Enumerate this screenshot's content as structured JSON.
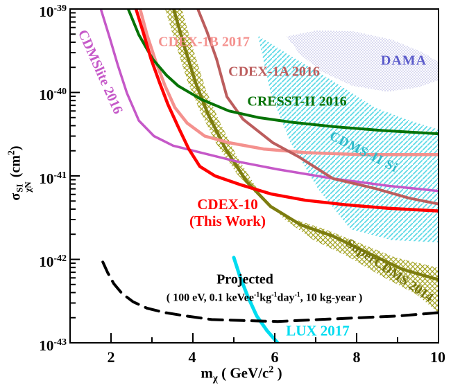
{
  "chart_data": {
    "type": "line",
    "title": "",
    "description": "WIMP spin-independent cross-section exclusion limits vs WIMP mass",
    "x_axis": {
      "scale": "linear",
      "range": [
        1,
        10
      ],
      "major_ticks": [
        2,
        4,
        6,
        8,
        10
      ],
      "minor_ticks": [
        3,
        5,
        7,
        9
      ],
      "tick_labels": [
        "2",
        "4",
        "6",
        "8",
        "10"
      ],
      "label_parts": {
        "p1": "m",
        "sub": "χ",
        "p2": " ( GeV/c",
        "sup": "2",
        "p3": " )"
      }
    },
    "y_axis": {
      "scale": "log",
      "exp_range": [
        -43,
        -39
      ],
      "tick_labels": [
        {
          "base": "10",
          "exp": "-39"
        },
        {
          "base": "10",
          "exp": "-40"
        },
        {
          "base": "10",
          "exp": "-41"
        },
        {
          "base": "10",
          "exp": "-42"
        },
        {
          "base": "10",
          "exp": "-43"
        }
      ],
      "label_parts": {
        "sigma": "σ",
        "sup": "SI",
        "sub": "χN",
        "p2": " (cm",
        "sup2": "2",
        "p3": ")"
      }
    },
    "annotations": {
      "cdmslite": "CDMSlite 2016",
      "cdex1b": "CDEX-1B 2017",
      "cdex1a": "CDEX-1A 2016",
      "cresst": "CRESST-II 2016",
      "dama": "DAMA",
      "cdms2si": "CDMS-II Si",
      "cdex10_line1": "CDEX-10",
      "cdex10_line2": "(This Work)",
      "supercdms": "SuperCDMS 2014",
      "projected": "Projected",
      "note": {
        "p1": "( 100 eV, 0.1 keVee",
        "s1": "-1",
        "p2": "kg",
        "s2": "-1",
        "p3": "day",
        "s3": "-1",
        "p4": ", 10 kg-year )"
      },
      "lux": "LUX 2017"
    },
    "series": [
      {
        "id": "dama",
        "label": "DAMA",
        "type": "region",
        "fill_style": "dots",
        "color": "#a9a9de",
        "text_color": "#5c5ccb",
        "points": [
          [
            6.29,
            4.7e-40
          ],
          [
            7.0,
            5.5e-40
          ],
          [
            7.93,
            5.4e-40
          ],
          [
            8.86,
            4.3e-40
          ],
          [
            9.63,
            3e-40
          ],
          [
            10,
            2.3e-40
          ],
          [
            10,
            1.4e-40
          ],
          [
            9.49,
            1.15e-40
          ],
          [
            8.75,
            1.02e-40
          ],
          [
            7.9,
            1.2e-40
          ],
          [
            7.12,
            1.8e-40
          ],
          [
            6.61,
            2.9e-40
          ]
        ]
      },
      {
        "id": "cdms2si",
        "label": "CDMS-II Si",
        "type": "region",
        "fill_style": "hatch",
        "color": "#5cd9e6",
        "text_color": "#2fb9c9",
        "points": [
          [
            5.59,
            4.8e-40
          ],
          [
            6.41,
            2.7e-40
          ],
          [
            7.39,
            1.4e-40
          ],
          [
            8.44,
            6.6e-41
          ],
          [
            9.29,
            4.6e-41
          ],
          [
            10,
            3.6e-41
          ],
          [
            10,
            1.6e-42
          ],
          [
            8.86,
            1.7e-42
          ],
          [
            7.85,
            2.3e-42
          ],
          [
            7.05,
            7.1e-42
          ],
          [
            6.37,
            2.6e-41
          ],
          [
            5.9,
            9.8e-41
          ]
        ]
      },
      {
        "id": "supercdms",
        "label": "SuperCDMS 2014",
        "type": "band",
        "color": "#7d7d10",
        "hatch_color": "#a3a322",
        "width": 4.5,
        "center": [
          [
            3.53,
            1e-39
          ],
          [
            3.78,
            3.7e-40
          ],
          [
            4.07,
            1.3e-40
          ],
          [
            4.37,
            5.5e-41
          ],
          [
            4.8,
            2.1e-41
          ],
          [
            5.31,
            8.6e-42
          ],
          [
            5.9,
            4.3e-42
          ],
          [
            6.63,
            2.6e-42
          ],
          [
            7.42,
            1.9e-42
          ],
          [
            8.27,
            1.2e-42
          ],
          [
            9.12,
            7.6e-43
          ],
          [
            10,
            5.7e-43
          ]
        ],
        "upper": [
          [
            3.32,
            1e-39
          ],
          [
            3.56,
            4.1e-40
          ],
          [
            3.86,
            1.4e-40
          ],
          [
            4.17,
            6e-41
          ],
          [
            4.58,
            2.4e-41
          ],
          [
            5.08,
            1.05e-41
          ],
          [
            5.68,
            5.2e-42
          ],
          [
            6.41,
            3.1e-42
          ],
          [
            7.22,
            2.3e-42
          ],
          [
            8.1,
            1.55e-42
          ],
          [
            8.95,
            1.05e-42
          ],
          [
            10,
            7.9e-43
          ]
        ],
        "lower": [
          [
            3.73,
            1e-39
          ],
          [
            4.0,
            3.4e-40
          ],
          [
            4.31,
            1.1e-40
          ],
          [
            4.64,
            4.6e-41
          ],
          [
            5.08,
            1.7e-41
          ],
          [
            5.63,
            6.3e-42
          ],
          [
            6.24,
            3e-42
          ],
          [
            6.95,
            1.7e-42
          ],
          [
            7.76,
            1.1e-42
          ],
          [
            8.61,
            6.3e-43
          ],
          [
            9.46,
            3.8e-43
          ],
          [
            10,
            2.3e-43
          ]
        ]
      },
      {
        "id": "cdmslite",
        "label": "CDMSlite 2016",
        "type": "line",
        "color": "#c558c8",
        "width": 3.5,
        "points": [
          [
            1.75,
            1e-39
          ],
          [
            1.97,
            4.5e-40
          ],
          [
            2.17,
            2.1e-40
          ],
          [
            2.39,
            9.8e-41
          ],
          [
            2.68,
            4.6e-41
          ],
          [
            3.05,
            3e-41
          ],
          [
            3.52,
            2.3e-41
          ],
          [
            4.2,
            1.9e-41
          ],
          [
            5.05,
            1.5e-41
          ],
          [
            6.07,
            1.2e-41
          ],
          [
            7.42,
            9.3e-42
          ],
          [
            8.78,
            7.6e-42
          ],
          [
            10,
            6.6e-42
          ]
        ]
      },
      {
        "id": "cdex1b",
        "label": "CDEX-1B 2017",
        "type": "line",
        "color": "#f4918e",
        "width": 4.5,
        "points": [
          [
            2.71,
            1e-39
          ],
          [
            2.88,
            4.9e-40
          ],
          [
            3.1,
            2.3e-40
          ],
          [
            3.32,
            1.2e-40
          ],
          [
            3.56,
            6.6e-41
          ],
          [
            3.86,
            4.3e-41
          ],
          [
            4.29,
            3e-41
          ],
          [
            4.88,
            2.5e-41
          ],
          [
            5.73,
            2.1e-41
          ],
          [
            6.75,
            1.9e-41
          ],
          [
            8.1,
            1.8e-41
          ],
          [
            10,
            1.8e-41
          ]
        ]
      },
      {
        "id": "cdex1a",
        "label": "CDEX-1A 2016",
        "type": "line",
        "color": "#bc5d5d",
        "width": 4,
        "points": [
          [
            4.12,
            1e-39
          ],
          [
            4.34,
            5.4e-40
          ],
          [
            4.58,
            2.5e-40
          ],
          [
            4.83,
            8.9e-41
          ],
          [
            5.22,
            4.8e-41
          ],
          [
            5.95,
            2.5e-41
          ],
          [
            6.58,
            1.7e-41
          ],
          [
            7.42,
            9.3e-42
          ],
          [
            8.44,
            7.1e-42
          ],
          [
            9.29,
            5.4e-42
          ],
          [
            10,
            4.6e-42
          ]
        ]
      },
      {
        "id": "cresst",
        "label": "CRESST-II 2016",
        "type": "line",
        "color": "#077307",
        "width": 4,
        "points": [
          [
            2.42,
            1e-39
          ],
          [
            2.68,
            4.9e-40
          ],
          [
            3.02,
            2.5e-40
          ],
          [
            3.36,
            1.6e-40
          ],
          [
            3.64,
            1.2e-40
          ],
          [
            4.2,
            8.3e-41
          ],
          [
            4.88,
            6e-41
          ],
          [
            5.61,
            5e-41
          ],
          [
            6.41,
            4.4e-41
          ],
          [
            7.42,
            3.9e-41
          ],
          [
            8.61,
            3.5e-41
          ],
          [
            10,
            3.2e-41
          ]
        ]
      },
      {
        "id": "cdex10",
        "label": "CDEX-10 (This Work)",
        "type": "line",
        "color": "#ff0000",
        "width": 4.5,
        "points": [
          [
            2.61,
            1e-39
          ],
          [
            2.78,
            5.4e-40
          ],
          [
            2.98,
            2.5e-40
          ],
          [
            3.19,
            1.3e-40
          ],
          [
            3.39,
            7.2e-41
          ],
          [
            3.66,
            3.7e-41
          ],
          [
            3.9,
            2.1e-41
          ],
          [
            4.17,
            1.3e-41
          ],
          [
            4.54,
            1e-41
          ],
          [
            5.14,
            7.9e-42
          ],
          [
            5.9,
            6.1e-42
          ],
          [
            6.75,
            5.1e-42
          ],
          [
            7.76,
            4.5e-42
          ],
          [
            8.78,
            4.1e-42
          ],
          [
            10,
            3.8e-42
          ]
        ]
      },
      {
        "id": "lux",
        "label": "LUX 2017",
        "type": "line",
        "color": "#00dcf0",
        "width": 5,
        "points": [
          [
            5.0,
            1.05e-42
          ],
          [
            5.15,
            6.2e-43
          ],
          [
            5.34,
            3.6e-43
          ],
          [
            5.56,
            2.1e-43
          ],
          [
            5.81,
            1.4e-43
          ],
          [
            6.07,
            1e-43
          ]
        ]
      },
      {
        "id": "projected",
        "label": "Projected ( 100 eV, 0.1 keVee-1 kg-1 day-1, 10 kg-year )",
        "type": "line",
        "color": "#000000",
        "width": 4,
        "dash": "20 11",
        "points": [
          [
            1.8,
            9.3e-43
          ],
          [
            1.92,
            6.9e-43
          ],
          [
            2.07,
            5.1e-43
          ],
          [
            2.27,
            3.9e-43
          ],
          [
            2.54,
            3.1e-43
          ],
          [
            2.88,
            2.6e-43
          ],
          [
            3.32,
            2.3e-43
          ],
          [
            3.83,
            2.1e-43
          ],
          [
            4.46,
            1.9e-43
          ],
          [
            5.22,
            1.85e-43
          ],
          [
            6.07,
            1.8e-43
          ],
          [
            7.08,
            1.9e-43
          ],
          [
            8.1,
            2e-43
          ],
          [
            9.03,
            2.1e-43
          ],
          [
            10,
            2.3e-43
          ]
        ]
      }
    ]
  }
}
